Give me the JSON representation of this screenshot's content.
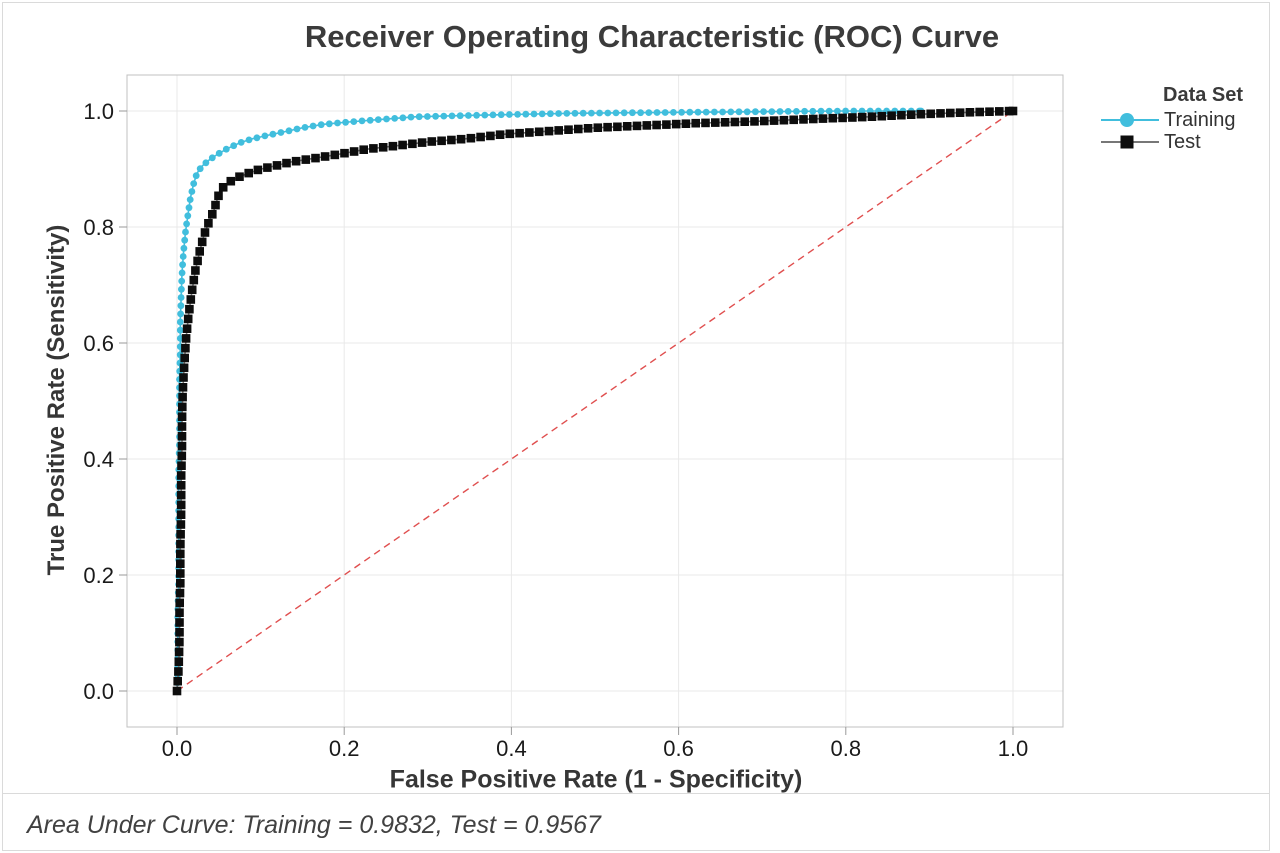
{
  "footer": {
    "text": "Area Under Curve: Training = 0.9832, Test = 0.9567"
  },
  "chart_data": {
    "type": "line",
    "title": "Receiver Operating Characteristic (ROC) Curve",
    "xlabel": "False Positive Rate (1 - Specificity)",
    "ylabel": "True Positive Rate (Sensitivity)",
    "xlim": [
      0,
      1
    ],
    "ylim": [
      0,
      1
    ],
    "grid": true,
    "x_tick_values": [
      0,
      0.2,
      0.4,
      0.6,
      0.8,
      1.0
    ],
    "x_tick_labels": [
      "0.0",
      "0.2",
      "0.4",
      "0.6",
      "0.8",
      "1.0"
    ],
    "y_tick_values": [
      0,
      0.2,
      0.4,
      0.6,
      0.8,
      1.0
    ],
    "y_tick_labels": [
      "0.0",
      "0.2",
      "0.4",
      "0.6",
      "0.8",
      "1.0"
    ],
    "colors": {
      "gridline": "#e9e9e9",
      "plot_border": "#c0c0c0",
      "tick": "#9a9a9a",
      "tick_label": "#1a1a1a",
      "reference_line": "#e04f4f"
    },
    "legend": {
      "title": "Data Set",
      "position": "right"
    },
    "reference_line": {
      "from": [
        0,
        0
      ],
      "to": [
        1,
        1
      ],
      "style": "dashed",
      "color": "#e04f4f"
    },
    "auc": {
      "training": 0.9832,
      "test": 0.9567
    },
    "series": [
      {
        "name": "Training",
        "marker": "circle",
        "color": "#41bedd",
        "line_color": "#41bedd",
        "points": [
          [
            0.0,
            0.0
          ],
          [
            0.001,
            0.04
          ],
          [
            0.001,
            0.09
          ],
          [
            0.001,
            0.14
          ],
          [
            0.002,
            0.19
          ],
          [
            0.002,
            0.25
          ],
          [
            0.002,
            0.31
          ],
          [
            0.002,
            0.37
          ],
          [
            0.003,
            0.43
          ],
          [
            0.003,
            0.49
          ],
          [
            0.003,
            0.54
          ],
          [
            0.004,
            0.59
          ],
          [
            0.004,
            0.64
          ],
          [
            0.005,
            0.68
          ],
          [
            0.006,
            0.72
          ],
          [
            0.008,
            0.76
          ],
          [
            0.01,
            0.79
          ],
          [
            0.013,
            0.82
          ],
          [
            0.016,
            0.85
          ],
          [
            0.02,
            0.875
          ],
          [
            0.024,
            0.893
          ],
          [
            0.03,
            0.905
          ],
          [
            0.038,
            0.915
          ],
          [
            0.048,
            0.925
          ],
          [
            0.06,
            0.935
          ],
          [
            0.075,
            0.945
          ],
          [
            0.09,
            0.952
          ],
          [
            0.108,
            0.958
          ],
          [
            0.128,
            0.964
          ],
          [
            0.15,
            0.971
          ],
          [
            0.175,
            0.977
          ],
          [
            0.205,
            0.981
          ],
          [
            0.24,
            0.985
          ],
          [
            0.285,
            0.99
          ],
          [
            0.34,
            0.992
          ],
          [
            0.4,
            0.994
          ],
          [
            0.47,
            0.996
          ],
          [
            0.545,
            0.997
          ],
          [
            0.625,
            0.998
          ],
          [
            0.71,
            0.999
          ],
          [
            0.8,
            1.0
          ],
          [
            0.89,
            1.0
          ]
        ]
      },
      {
        "name": "Test",
        "marker": "square",
        "color": "#0d0d0d",
        "line_color": "#777777",
        "points": [
          [
            0.0,
            0.0
          ],
          [
            0.002,
            0.04
          ],
          [
            0.003,
            0.09
          ],
          [
            0.003,
            0.14
          ],
          [
            0.004,
            0.19
          ],
          [
            0.004,
            0.25
          ],
          [
            0.005,
            0.31
          ],
          [
            0.005,
            0.37
          ],
          [
            0.006,
            0.42
          ],
          [
            0.006,
            0.47
          ],
          [
            0.007,
            0.52
          ],
          [
            0.009,
            0.57
          ],
          [
            0.011,
            0.61
          ],
          [
            0.014,
            0.65
          ],
          [
            0.018,
            0.69
          ],
          [
            0.022,
            0.725
          ],
          [
            0.027,
            0.757
          ],
          [
            0.032,
            0.785
          ],
          [
            0.038,
            0.808
          ],
          [
            0.044,
            0.828
          ],
          [
            0.049,
            0.852
          ],
          [
            0.054,
            0.867
          ],
          [
            0.062,
            0.877
          ],
          [
            0.072,
            0.885
          ],
          [
            0.084,
            0.892
          ],
          [
            0.098,
            0.899
          ],
          [
            0.116,
            0.905
          ],
          [
            0.136,
            0.912
          ],
          [
            0.162,
            0.918
          ],
          [
            0.192,
            0.925
          ],
          [
            0.226,
            0.934
          ],
          [
            0.262,
            0.94
          ],
          [
            0.302,
            0.947
          ],
          [
            0.345,
            0.952
          ],
          [
            0.392,
            0.96
          ],
          [
            0.442,
            0.965
          ],
          [
            0.5,
            0.971
          ],
          [
            0.56,
            0.975
          ],
          [
            0.622,
            0.979
          ],
          [
            0.69,
            0.982
          ],
          [
            0.758,
            0.986
          ],
          [
            0.828,
            0.99
          ],
          [
            0.898,
            0.995
          ],
          [
            0.952,
            0.998
          ],
          [
            1.0,
            1.0
          ]
        ]
      }
    ]
  }
}
